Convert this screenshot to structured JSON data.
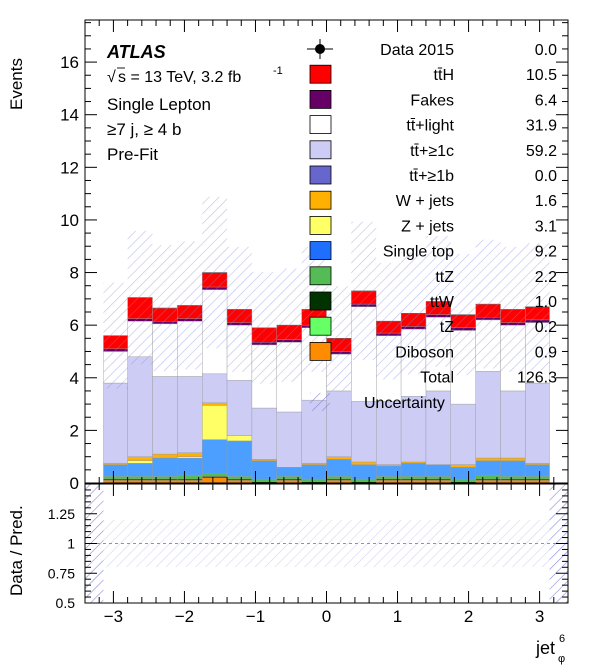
{
  "labels": {
    "experiment": "ATLAS",
    "energy_prefix": "s = 13 TeV, 3.2 fb",
    "energy_sup": "-1",
    "channel": "Single Lepton",
    "selection": "≥7 j, ≥ 4 b",
    "fit": "Pre-Fit"
  },
  "chart_data": [
    {
      "type": "bar",
      "stacked": true,
      "ylabel": "Events",
      "ylim": [
        0,
        17.6
      ],
      "x_edges": [
        -3.4,
        -3.14,
        -2.8,
        -2.45,
        -2.1,
        -1.75,
        -1.4,
        -1.05,
        -0.7,
        -0.35,
        0,
        0.35,
        0.7,
        1.05,
        1.4,
        1.75,
        2.1,
        2.45,
        2.8,
        3.14,
        3.4
      ],
      "y_ticks": [
        0,
        2,
        4,
        6,
        8,
        10,
        12,
        14,
        16
      ],
      "x_ticks": [
        -3,
        -2,
        -1,
        0,
        1,
        2,
        3
      ],
      "series": [
        {
          "name": "Diboson",
          "color": "#ff8c00",
          "values": [
            0,
            0.1,
            0.1,
            0.1,
            0.1,
            0.2,
            0.1,
            0,
            0.1,
            0,
            0.1,
            0,
            0.1,
            0.1,
            0.1,
            0,
            0.1,
            0.1,
            0.1,
            0
          ]
        },
        {
          "name": "tZ",
          "color": "#66ff66",
          "values": [
            0,
            0,
            0,
            0,
            0,
            0,
            0,
            0,
            0,
            0,
            0,
            0,
            0,
            0,
            0,
            0,
            0,
            0,
            0,
            0
          ]
        },
        {
          "name": "ttW",
          "color": "#003300",
          "values": [
            0,
            0.05,
            0.05,
            0.05,
            0.05,
            0.05,
            0.05,
            0.05,
            0.05,
            0.05,
            0.05,
            0.05,
            0.05,
            0.05,
            0.05,
            0.05,
            0.05,
            0.05,
            0.05,
            0
          ]
        },
        {
          "name": "ttZ",
          "color": "#55bb55",
          "values": [
            0,
            0.1,
            0.1,
            0.1,
            0.15,
            0.1,
            0.1,
            0.1,
            0.1,
            0.1,
            0.1,
            0.1,
            0.1,
            0.1,
            0.1,
            0.1,
            0.15,
            0.1,
            0.1,
            0
          ]
        },
        {
          "name": "Single top",
          "color": "#4c9fff",
          "values": [
            0,
            0.45,
            0.5,
            0.7,
            0.65,
            1.3,
            1.35,
            0.7,
            0.35,
            0.55,
            0.65,
            0.55,
            0.4,
            0.5,
            0.45,
            0.45,
            0.55,
            0.6,
            0.45,
            0
          ]
        },
        {
          "name": "Z + jets",
          "color": "#ffff66",
          "values": [
            0,
            0,
            0.1,
            0,
            0.05,
            1.3,
            0.2,
            0,
            0,
            0,
            0,
            0,
            0,
            0,
            0,
            0,
            0,
            0,
            0,
            0
          ]
        },
        {
          "name": "W + jets",
          "color": "#ffb000",
          "values": [
            0,
            0.05,
            0.15,
            0.15,
            0.15,
            0.1,
            0,
            0.05,
            0,
            0.05,
            0.1,
            0.1,
            0.05,
            0.05,
            0,
            0.1,
            0.1,
            0.1,
            0.05,
            0
          ]
        },
        {
          "name": "tt̄+≥1b",
          "color": "#6666cc",
          "values": [
            0,
            0,
            0,
            0,
            0,
            0,
            0,
            0,
            0,
            0,
            0,
            0,
            0,
            0,
            0,
            0,
            0,
            0,
            0,
            0
          ]
        },
        {
          "name": "tt̄+≥1c",
          "color": "#ccccf5",
          "values": [
            0,
            3.05,
            3.8,
            2.95,
            2.9,
            1.1,
            2.1,
            1.95,
            2.1,
            2.4,
            2.5,
            2.3,
            2.4,
            2.5,
            2.8,
            2.3,
            3.3,
            2.55,
            3.05,
            0
          ]
        },
        {
          "name": "tt̄+light",
          "color": "#ffffff",
          "values": [
            0,
            1.2,
            1.35,
            2.0,
            2.1,
            3.2,
            2.1,
            2.4,
            2.65,
            2.75,
            1.4,
            3.6,
            2.5,
            2.55,
            2.8,
            2.8,
            1.95,
            2.5,
            2.3,
            0
          ]
        },
        {
          "name": "Fakes",
          "color": "#660066",
          "values": [
            0,
            0.1,
            0.1,
            0.1,
            0.1,
            0.1,
            0.1,
            0.1,
            0.1,
            0.1,
            0.1,
            0.1,
            0.1,
            0.1,
            0.1,
            0.1,
            0.1,
            0.1,
            0.1,
            0
          ]
        },
        {
          "name": "tt̄H",
          "color": "#ff0000",
          "values": [
            0,
            0.5,
            0.8,
            0.5,
            0.5,
            0.55,
            0.5,
            0.55,
            0.55,
            0.6,
            0.5,
            0.5,
            0.45,
            0.5,
            0.5,
            0.5,
            0.5,
            0.5,
            0.5,
            0
          ]
        }
      ],
      "uncertainty": {
        "name": "Uncertainty",
        "relative": 0.36
      },
      "legend": [
        {
          "label": "Data 2015",
          "value": "0.0",
          "marker": "data"
        },
        {
          "label": "tt̄H",
          "value": "10.5",
          "color": "#ff0000"
        },
        {
          "label": "Fakes",
          "value": "6.4",
          "color": "#660066"
        },
        {
          "label": "tt̄+light",
          "value": "31.9",
          "color": "#ffffff"
        },
        {
          "label": "tt̄+≥1c",
          "value": "59.2",
          "color": "#ccccf5"
        },
        {
          "label": "tt̄+≥1b",
          "value": "0.0",
          "color": "#6666cc"
        },
        {
          "label": "W + jets",
          "value": "1.6",
          "color": "#ffb000"
        },
        {
          "label": "Z + jets",
          "value": "3.1",
          "color": "#ffff66"
        },
        {
          "label": "Single top",
          "value": "9.2",
          "color": "#1f6fff"
        },
        {
          "label": "ttZ",
          "value": "2.2",
          "color": "#55bb55"
        },
        {
          "label": "ttW",
          "value": "1.0",
          "color": "#003300"
        },
        {
          "label": "tZ",
          "value": "0.2",
          "color": "#66ff66"
        },
        {
          "label": "Diboson",
          "value": "0.9",
          "color": "#ff8c00"
        },
        {
          "label": "Total",
          "value": "126.3",
          "marker": "none"
        },
        {
          "label": "Uncertainty",
          "value": "",
          "marker": "hatch"
        }
      ],
      "legend_placement": "top-right"
    },
    {
      "type": "bar",
      "ylabel": "Data / Pred.",
      "xlabel": "jet",
      "xlabel_sup": "6",
      "xlabel_sub": "φ",
      "ylim": [
        0.5,
        1.5
      ],
      "y_ticks": [
        0.5,
        0.75,
        1,
        1.25
      ],
      "y_tick_labels": [
        "0.5",
        "0.75",
        "1",
        "1.25"
      ],
      "reference_line": 1,
      "x_ticks": [
        -3,
        -2,
        -1,
        0,
        1,
        2,
        3
      ]
    }
  ]
}
